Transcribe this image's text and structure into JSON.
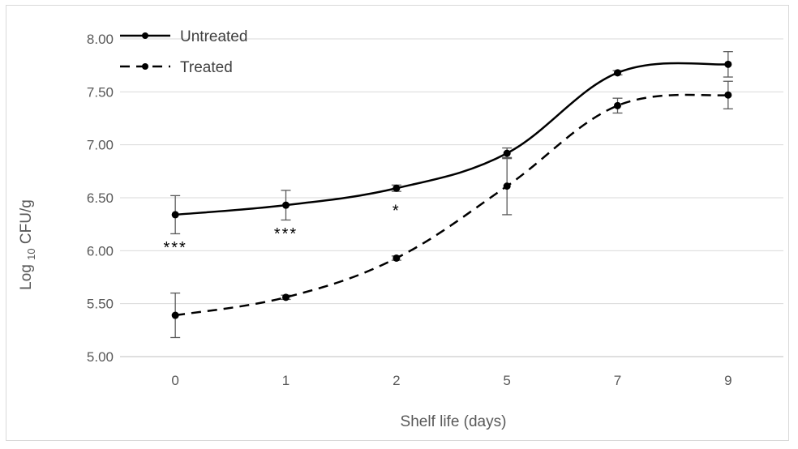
{
  "chart_data": {
    "type": "line",
    "categories": [
      "0",
      "1",
      "2",
      "5",
      "7",
      "9"
    ],
    "xlabel": "Shelf life (days)",
    "ylabel": {
      "prefix": "Log ",
      "subscript": "10",
      "suffix": " CFU/g"
    },
    "ylim": [
      5.0,
      8.0
    ],
    "yticks": [
      "5.00",
      "5.50",
      "6.00",
      "6.50",
      "7.00",
      "7.50",
      "8.00"
    ],
    "grid": true,
    "legend_position": "top-left",
    "series": [
      {
        "name": "Untreated",
        "style": "solid",
        "color": "#000000",
        "values": [
          6.34,
          6.43,
          6.59,
          6.92,
          7.68,
          7.76
        ],
        "errors": [
          0.18,
          0.14,
          0.03,
          0.05,
          0.02,
          0.12
        ]
      },
      {
        "name": "Treated",
        "style": "dashed",
        "color": "#000000",
        "values": [
          5.39,
          5.56,
          5.93,
          6.61,
          7.37,
          7.47
        ],
        "errors": [
          0.21,
          0.02,
          0.02,
          0.27,
          0.07,
          0.13
        ]
      }
    ],
    "annotations": [
      {
        "category_index": 0,
        "y": 6.04,
        "text": "***"
      },
      {
        "category_index": 1,
        "y": 6.17,
        "text": "***"
      },
      {
        "category_index": 2,
        "y": 6.39,
        "text": "*"
      }
    ]
  }
}
